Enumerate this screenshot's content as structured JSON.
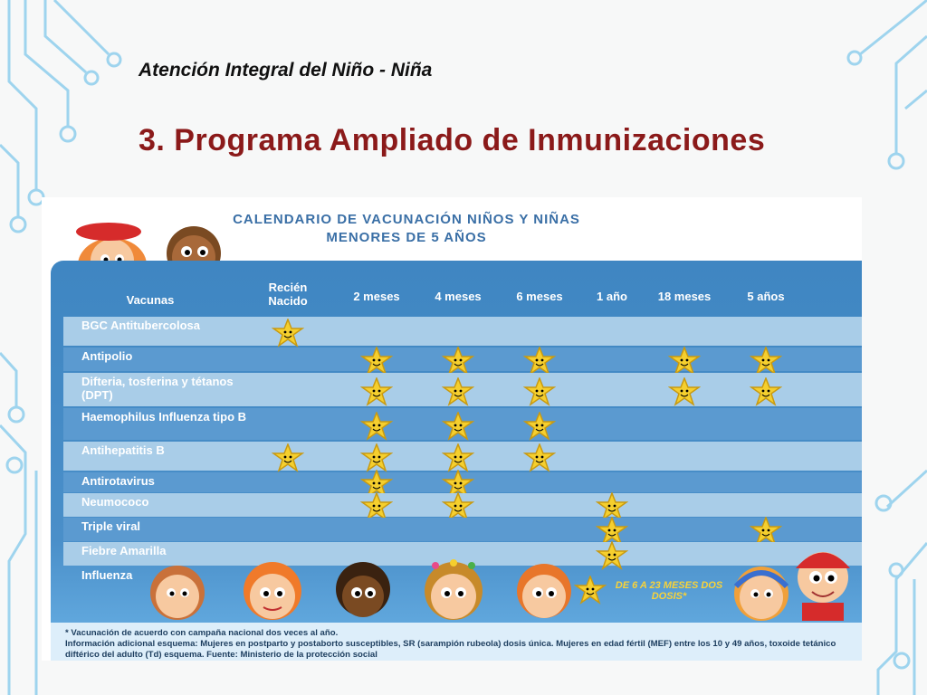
{
  "slide": {
    "subtitle": "Atención Integral del Niño - Niña",
    "title": "3. Programa Ampliado de Inmunizaciones"
  },
  "calendar": {
    "title_line1": "CALENDARIO DE VACUNACIÓN NIÑOS Y NIÑAS",
    "title_line2": "MENORES DE 5 AÑOS",
    "vaccine_header": "Vacunas",
    "columns": [
      "Recién Nacido",
      "2 meses",
      "4 meses",
      "6 meses",
      "1 año",
      "18 meses",
      "5 años"
    ],
    "rows": [
      {
        "name": "BGC Antitubercolosa",
        "doses": [
          1,
          0,
          0,
          0,
          0,
          0,
          0
        ]
      },
      {
        "name": "Antipolio",
        "doses": [
          0,
          1,
          1,
          1,
          0,
          1,
          1
        ]
      },
      {
        "name": "Difteria, tosferina y tétanos (DPT)",
        "doses": [
          0,
          1,
          1,
          1,
          0,
          1,
          1
        ]
      },
      {
        "name": "Haemophilus Influenza tipo B",
        "doses": [
          0,
          1,
          1,
          1,
          0,
          0,
          0
        ]
      },
      {
        "name": "Antihepatitis B",
        "doses": [
          1,
          1,
          1,
          1,
          0,
          0,
          0
        ]
      },
      {
        "name": "Antirotavirus",
        "doses": [
          0,
          1,
          1,
          0,
          0,
          0,
          0
        ]
      },
      {
        "name": "Neumococo",
        "doses": [
          0,
          1,
          1,
          0,
          1,
          0,
          0
        ]
      },
      {
        "name": "Triple viral",
        "doses": [
          0,
          0,
          0,
          0,
          1,
          0,
          1
        ]
      },
      {
        "name": "Fiebre Amarilla",
        "doses": [
          0,
          0,
          0,
          0,
          1,
          0,
          0
        ]
      },
      {
        "name": "Influenza",
        "doses": [
          0,
          0,
          0,
          0,
          0,
          0,
          0
        ]
      }
    ],
    "influenza_note": "DE 6 A 23 MESES DOS DOSIS*",
    "footnote_1": "* Vacunación de acuerdo con campaña nacional dos veces al año.",
    "footnote_2": "Información adicional esquema: Mujeres en postparto y postaborto susceptibles, SR (sarampión rubeola) dosis única. Mujeres en edad fértil (MEF) entre los 10 y 49 años, toxoide tetánico diftérico del adulto (Td) esquema. Fuente: Ministerio de la protección social"
  },
  "colors": {
    "title": "#8b1a1a",
    "header_blue": "#3f86c2",
    "row_light": "#a9cde8",
    "row_dark": "#5b9ad0",
    "star": "#f5cf2e",
    "circuit": "#9ed4ee"
  }
}
